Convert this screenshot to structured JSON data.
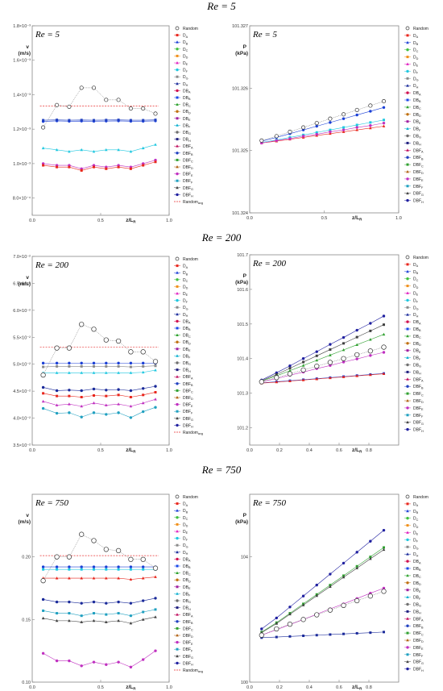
{
  "rows": [
    {
      "title": "Re = 5"
    },
    {
      "title": "Re = 200"
    },
    {
      "title": "Re = 750"
    }
  ],
  "legend_left": [
    "Random",
    "DA",
    "DB",
    "DC",
    "DD",
    "DE",
    "DF",
    "DG",
    "DH",
    "DBA",
    "DBB",
    "DBC",
    "DBD",
    "DBE",
    "DBF",
    "DBG",
    "DBH",
    "DBFA",
    "DBFB",
    "DBFC",
    "DBFD",
    "DBFE",
    "DBFF",
    "DBFG",
    "DBFH",
    "Randomavg"
  ],
  "legend_right": [
    "Random",
    "DA",
    "DB",
    "DC",
    "DD",
    "DE",
    "DF",
    "DG",
    "DH",
    "DBA",
    "DBB",
    "DBC",
    "DBD",
    "DBE",
    "DBF",
    "DBG",
    "DBH",
    "DBFA",
    "DBFB",
    "DBFC",
    "DBFD",
    "DBFE",
    "DBFF",
    "DBFG",
    "DBFH"
  ],
  "series_colors": {
    "DA": "#e8261c",
    "DB": "#1a3fd6",
    "DC": "#3fbf3f",
    "DD": "#f0901a",
    "DE": "#e020c0",
    "DF": "#20c8e0",
    "DG": "#8a8a8a",
    "DH": "#1a2a9a",
    "DBA": "#d01050",
    "DBB": "#1a48e8",
    "DBC": "#2aa02a",
    "DBD": "#c07010",
    "DBE": "#a020a0",
    "DBF": "#10b0d0",
    "DBG": "#707070",
    "DBH": "#202080",
    "DBFA": "#c01060",
    "DBFB": "#2040c0",
    "DBFC": "#30a030",
    "DBFD": "#b06010",
    "DBFE": "#c030c0",
    "DBFF": "#20a0c0",
    "DBFG": "#404040",
    "DBFH": "#2020a0",
    "Random": "#444444",
    "Randomavg": "#e83030"
  },
  "chart_data": [
    {
      "type": "line",
      "panel": "velocity",
      "re_label": "Re = 5",
      "xlabel": "z/LR",
      "ylabel": "v (m/s)",
      "xlim": [
        0,
        1
      ],
      "ylim": [
        0.0007,
        0.0018
      ],
      "xticks": [
        {
          "v": 0,
          "t": "0.0"
        },
        {
          "v": 0.5,
          "t": "0.5"
        },
        {
          "v": 1,
          "t": "1.0"
        }
      ],
      "yticks": [
        {
          "v": 0.0008,
          "t": "8.0×10⁻⁴"
        },
        {
          "v": 0.001,
          "t": "1.0×10⁻³"
        },
        {
          "v": 0.0012,
          "t": "1.2×10⁻³"
        },
        {
          "v": 0.0014,
          "t": "1.4×10⁻³"
        },
        {
          "v": 0.0016,
          "t": "1.6×10⁻³"
        },
        {
          "v": 0.0018,
          "t": "1.8×10⁻³"
        }
      ],
      "x": [
        0.08,
        0.18,
        0.27,
        0.36,
        0.45,
        0.54,
        0.63,
        0.72,
        0.81,
        0.9
      ],
      "random": [
        0.00121,
        0.00134,
        0.00133,
        0.00144,
        0.00144,
        0.00137,
        0.00137,
        0.00132,
        0.00132,
        0.00129
      ],
      "random_avg": 0.001335,
      "groups": [
        {
          "color": "#1a3fd6",
          "values": [
            0.001245,
            0.001248,
            0.001246,
            0.001247,
            0.001246,
            0.001247,
            0.001248,
            0.001246,
            0.001246,
            0.001248
          ]
        },
        {
          "color": "#2040c0",
          "values": [
            0.001252,
            0.001254,
            0.001252,
            0.001253,
            0.001252,
            0.001253,
            0.001254,
            0.001252,
            0.001252,
            0.001254
          ]
        },
        {
          "color": "#20c8e0",
          "values": [
            0.00109,
            0.00108,
            0.00107,
            0.00108,
            0.00107,
            0.00108,
            0.00108,
            0.00107,
            0.00109,
            0.00111
          ]
        },
        {
          "color": "#c030c0",
          "values": [
            0.001,
            0.00099,
            0.00099,
            0.00097,
            0.00099,
            0.00098,
            0.00099,
            0.00098,
            0.001,
            0.00102
          ]
        },
        {
          "color": "#e8261c",
          "values": [
            0.00099,
            0.00098,
            0.00098,
            0.00096,
            0.00098,
            0.00097,
            0.00098,
            0.00097,
            0.00099,
            0.00101
          ]
        }
      ]
    },
    {
      "type": "line",
      "panel": "pressure",
      "re_label": "Re = 5",
      "xlabel": "z/LR",
      "ylabel": "P (kPa)",
      "xlim": [
        0,
        1
      ],
      "ylim": [
        101.324,
        101.327
      ],
      "xticks": [
        {
          "v": 0,
          "t": "0.0"
        },
        {
          "v": 0.5,
          "t": "0.5"
        },
        {
          "v": 1,
          "t": "1.0"
        }
      ],
      "yticks": [
        {
          "v": 101.324,
          "t": "101.324"
        },
        {
          "v": 101.325,
          "t": "101.325"
        },
        {
          "v": 101.326,
          "t": "101.326"
        },
        {
          "v": 101.327,
          "t": "101.327"
        }
      ],
      "x": [
        0.08,
        0.18,
        0.27,
        0.36,
        0.45,
        0.54,
        0.63,
        0.72,
        0.81,
        0.9
      ],
      "random": [
        101.32516,
        101.32523,
        101.3253,
        101.32537,
        101.32544,
        101.32551,
        101.32558,
        101.32565,
        101.32572,
        101.32579
      ],
      "groups": [
        {
          "color": "#1a3fd6",
          "values": [
            101.32515,
            101.32521,
            101.32527,
            101.32533,
            101.32539,
            101.32545,
            101.32551,
            101.32557,
            101.32563,
            101.32569
          ]
        },
        {
          "color": "#20c8e0",
          "values": [
            101.32513,
            101.32517,
            101.32521,
            101.32525,
            101.32529,
            101.32533,
            101.32537,
            101.32541,
            101.32545,
            101.32549
          ]
        },
        {
          "color": "#e8261c",
          "values": [
            101.32512,
            101.32515,
            101.32518,
            101.32521,
            101.32524,
            101.32527,
            101.3253,
            101.32533,
            101.32536,
            101.32539
          ]
        },
        {
          "color": "#c030c0",
          "values": [
            101.32512,
            101.32516,
            101.32519,
            101.32523,
            101.32526,
            101.3253,
            101.32533,
            101.32537,
            101.3254,
            101.32544
          ]
        }
      ]
    },
    {
      "type": "line",
      "panel": "velocity",
      "re_label": "Re = 200",
      "xlabel": "z/LR",
      "ylabel": "v (m/s)",
      "xlim": [
        0,
        1
      ],
      "ylim": [
        0.035,
        0.07
      ],
      "xticks": [
        {
          "v": 0,
          "t": "0.0"
        },
        {
          "v": 0.5,
          "t": "0.5"
        },
        {
          "v": 1,
          "t": "1.0"
        }
      ],
      "yticks": [
        {
          "v": 0.035,
          "t": "3.5×10⁻²"
        },
        {
          "v": 0.04,
          "t": "4.0×10⁻²"
        },
        {
          "v": 0.045,
          "t": "4.5×10⁻²"
        },
        {
          "v": 0.05,
          "t": "5.0×10⁻²"
        },
        {
          "v": 0.055,
          "t": "5.5×10⁻²"
        },
        {
          "v": 0.06,
          "t": "6.0×10⁻²"
        },
        {
          "v": 0.065,
          "t": "6.5×10⁻²"
        },
        {
          "v": 0.07,
          "t": "7.0×10⁻²"
        }
      ],
      "x": [
        0.08,
        0.18,
        0.27,
        0.36,
        0.45,
        0.54,
        0.63,
        0.72,
        0.81,
        0.9
      ],
      "random": [
        0.048,
        0.053,
        0.053,
        0.0574,
        0.0565,
        0.0545,
        0.0543,
        0.0523,
        0.0523,
        0.0505
      ],
      "random_avg": 0.0532,
      "groups": [
        {
          "color": "#1a3fd6",
          "values": [
            0.0502,
            0.0502,
            0.0502,
            0.0502,
            0.0502,
            0.0502,
            0.0502,
            0.0502,
            0.0502,
            0.0502
          ]
        },
        {
          "color": "#8a8a8a",
          "values": [
            0.0495,
            0.0496,
            0.0496,
            0.0496,
            0.0496,
            0.0496,
            0.0496,
            0.0495,
            0.0496,
            0.0497
          ]
        },
        {
          "color": "#20c8e0",
          "values": [
            0.0484,
            0.0484,
            0.0484,
            0.0484,
            0.0484,
            0.0484,
            0.0484,
            0.0484,
            0.0485,
            0.0489
          ]
        },
        {
          "color": "#1a2a9a",
          "values": [
            0.0457,
            0.0451,
            0.0452,
            0.0451,
            0.0454,
            0.0452,
            0.0453,
            0.0451,
            0.0455,
            0.0459
          ]
        },
        {
          "color": "#e8261c",
          "values": [
            0.0446,
            0.0441,
            0.0441,
            0.0439,
            0.0442,
            0.0441,
            0.0443,
            0.0439,
            0.0443,
            0.0448
          ]
        },
        {
          "color": "#c030c0",
          "values": [
            0.0431,
            0.0424,
            0.0426,
            0.0422,
            0.0428,
            0.0424,
            0.0426,
            0.0422,
            0.0428,
            0.0435
          ]
        },
        {
          "color": "#20a0c0",
          "values": [
            0.0418,
            0.0409,
            0.041,
            0.0402,
            0.041,
            0.0407,
            0.041,
            0.0401,
            0.0412,
            0.042
          ]
        }
      ]
    },
    {
      "type": "line",
      "panel": "pressure",
      "re_label": "Re = 200",
      "xlabel": "z/LR",
      "ylabel": "P (kPa)",
      "xlim": [
        0,
        1
      ],
      "ylim": [
        101.15,
        101.7
      ],
      "xticks": [
        {
          "v": 0,
          "t": "0.0"
        },
        {
          "v": 0.2,
          "t": "0.2"
        },
        {
          "v": 0.4,
          "t": "0.4"
        },
        {
          "v": 0.6,
          "t": "0.6"
        },
        {
          "v": 0.8,
          "t": "0.8"
        }
      ],
      "yticks": [
        {
          "v": 101.2,
          "t": "101.2"
        },
        {
          "v": 101.3,
          "t": "101.3"
        },
        {
          "v": 101.4,
          "t": "101.4"
        },
        {
          "v": 101.5,
          "t": "101.5"
        },
        {
          "v": 101.6,
          "t": "101.6"
        },
        {
          "v": 101.7,
          "t": "101.7"
        }
      ],
      "x": [
        0.08,
        0.18,
        0.27,
        0.36,
        0.45,
        0.54,
        0.63,
        0.72,
        0.81,
        0.9
      ],
      "random": [
        101.333,
        101.345,
        101.356,
        101.367,
        101.378,
        101.389,
        101.4,
        101.411,
        101.422,
        101.433
      ],
      "groups": [
        {
          "color": "#2020a0",
          "values": [
            101.338,
            101.359,
            101.379,
            101.4,
            101.42,
            101.441,
            101.461,
            101.482,
            101.502,
            101.523
          ]
        },
        {
          "color": "#404040",
          "values": [
            101.336,
            101.354,
            101.372,
            101.39,
            101.408,
            101.426,
            101.444,
            101.462,
            101.48,
            101.498
          ]
        },
        {
          "color": "#30a030",
          "values": [
            101.335,
            101.35,
            101.365,
            101.38,
            101.395,
            101.41,
            101.425,
            101.44,
            101.455,
            101.47
          ]
        },
        {
          "color": "#c030c0",
          "values": [
            101.333,
            101.342,
            101.352,
            101.361,
            101.371,
            101.38,
            101.39,
            101.399,
            101.409,
            101.418
          ]
        },
        {
          "color": "#1a3fd6",
          "values": [
            101.33,
            101.333,
            101.336,
            101.339,
            101.342,
            101.345,
            101.348,
            101.351,
            101.354,
            101.357
          ]
        },
        {
          "color": "#e8261c",
          "values": [
            101.329,
            101.332,
            101.335,
            101.338,
            101.341,
            101.344,
            101.347,
            101.35,
            101.353,
            101.356
          ]
        }
      ]
    },
    {
      "type": "line",
      "panel": "velocity",
      "re_label": "Re = 750",
      "xlabel": "z/LR",
      "ylabel": "v (m/s)",
      "xlim": [
        0,
        1
      ],
      "ylim": [
        0.1,
        0.25
      ],
      "xticks": [
        {
          "v": 0,
          "t": "0.0"
        },
        {
          "v": 0.5,
          "t": "0.5"
        },
        {
          "v": 1,
          "t": "1.0"
        }
      ],
      "yticks": [
        {
          "v": 0.1,
          "t": "0.10"
        },
        {
          "v": 0.15,
          "t": "0.15"
        },
        {
          "v": 0.2,
          "t": "0.20"
        }
      ],
      "x": [
        0.08,
        0.18,
        0.27,
        0.36,
        0.45,
        0.54,
        0.63,
        0.72,
        0.81,
        0.9
      ],
      "random": [
        0.181,
        0.2,
        0.2,
        0.218,
        0.213,
        0.206,
        0.205,
        0.198,
        0.198,
        0.191
      ],
      "random_avg": 0.201,
      "groups": [
        {
          "color": "#1a3fd6",
          "values": [
            0.192,
            0.192,
            0.192,
            0.192,
            0.192,
            0.192,
            0.192,
            0.192,
            0.192,
            0.192
          ]
        },
        {
          "color": "#20c8e0",
          "values": [
            0.19,
            0.19,
            0.19,
            0.19,
            0.19,
            0.19,
            0.19,
            0.19,
            0.19,
            0.19
          ]
        },
        {
          "color": "#e8261c",
          "values": [
            0.183,
            0.183,
            0.183,
            0.183,
            0.183,
            0.183,
            0.183,
            0.182,
            0.183,
            0.184
          ]
        },
        {
          "color": "#1a2a9a",
          "values": [
            0.166,
            0.164,
            0.164,
            0.163,
            0.164,
            0.163,
            0.164,
            0.163,
            0.165,
            0.167
          ]
        },
        {
          "color": "#20a0c0",
          "values": [
            0.157,
            0.155,
            0.155,
            0.153,
            0.155,
            0.154,
            0.155,
            0.153,
            0.156,
            0.158
          ]
        },
        {
          "color": "#404040",
          "values": [
            0.151,
            0.149,
            0.149,
            0.148,
            0.149,
            0.148,
            0.149,
            0.147,
            0.15,
            0.152
          ]
        },
        {
          "color": "#c030c0",
          "values": [
            0.123,
            0.117,
            0.117,
            0.113,
            0.116,
            0.114,
            0.116,
            0.112,
            0.118,
            0.125
          ]
        }
      ]
    },
    {
      "type": "line",
      "panel": "pressure",
      "re_label": "Re = 750",
      "xlabel": "z/LR",
      "ylabel": "P (kPa)",
      "xlim": [
        0,
        1
      ],
      "ylim": [
        100,
        106
      ],
      "xticks": [
        {
          "v": 0,
          "t": "0.0"
        },
        {
          "v": 0.2,
          "t": "0.2"
        },
        {
          "v": 0.4,
          "t": "0.4"
        },
        {
          "v": 0.6,
          "t": "0.6"
        },
        {
          "v": 0.8,
          "t": "0.8"
        }
      ],
      "yticks": [
        {
          "v": 100,
          "t": "100"
        },
        {
          "v": 104,
          "t": "104"
        }
      ],
      "x": [
        0.08,
        0.18,
        0.27,
        0.36,
        0.45,
        0.54,
        0.63,
        0.72,
        0.81,
        0.9
      ],
      "random": [
        101.5,
        101.7,
        101.85,
        102.0,
        102.15,
        102.3,
        102.45,
        102.6,
        102.75,
        102.9
      ],
      "groups": [
        {
          "color": "#2020a0",
          "values": [
            101.7,
            102.05,
            102.4,
            102.75,
            103.1,
            103.45,
            103.8,
            104.15,
            104.5,
            104.85
          ]
        },
        {
          "color": "#30a030",
          "values": [
            101.6,
            101.9,
            102.2,
            102.5,
            102.8,
            103.1,
            103.4,
            103.7,
            104.0,
            104.3
          ]
        },
        {
          "color": "#404040",
          "values": [
            101.58,
            101.87,
            102.17,
            102.46,
            102.76,
            103.05,
            103.35,
            103.64,
            103.94,
            104.23
          ]
        },
        {
          "color": "#c030c0",
          "values": [
            101.5,
            101.67,
            101.84,
            102.0,
            102.17,
            102.34,
            102.5,
            102.67,
            102.84,
            103.0
          ]
        },
        {
          "color": "#1a2a9a",
          "values": [
            101.42,
            101.44,
            101.46,
            101.48,
            101.5,
            101.52,
            101.54,
            101.56,
            101.58,
            101.6
          ]
        }
      ]
    }
  ]
}
